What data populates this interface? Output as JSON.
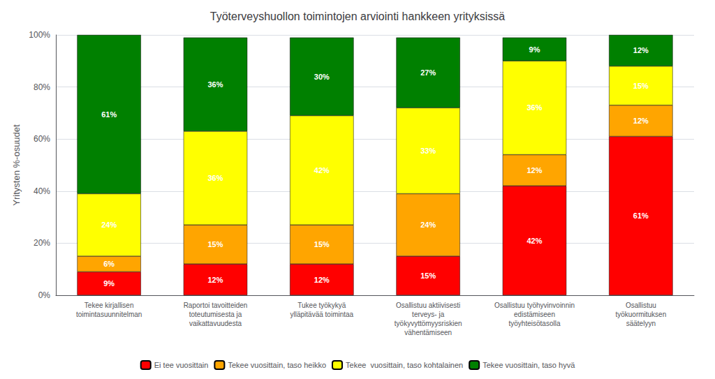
{
  "chart_data": {
    "type": "bar",
    "title": "Työterveyshuollon toimintojen arviointi hankkeen yrityksissä",
    "ylabel": "Yritysten %-osuudet",
    "categories": [
      "Tekee kirjallisen\ntoimintasuunnitelman",
      "Raportoi tavoitteiden\ntoteutumisesta ja\nvaikattavuudesta",
      "Tukee työkykyä\nylläpitävää toimintaa",
      "Osallistuu aktiivisesti\nterveys- ja\ntyökyvyttömyysriskien\nvähentämiseen",
      "Osallistuu työhyvinvoinnin\nedistämiseen\ntyöyhteisötasolla",
      "Osallistuu\ntyökuormituksen\nsäätelyyn"
    ],
    "series": [
      {
        "name": "Ei tee vuosittain",
        "color": "#FF0000",
        "values": [
          9,
          12,
          12,
          15,
          42,
          61
        ],
        "value_labels": [
          "9%",
          "12%",
          "12%",
          "15%",
          "42%",
          "61%"
        ]
      },
      {
        "name": "Tekee vuosittain, taso heikko",
        "color": "#FFA500",
        "values": [
          6,
          15,
          15,
          24,
          12,
          12
        ],
        "value_labels": [
          "6%",
          "15%",
          "15%",
          "24%",
          "12%",
          "12%"
        ]
      },
      {
        "name": "Tekee  vuosittain, taso kohtalainen",
        "color": "#FFFF00",
        "values": [
          24,
          36,
          42,
          33,
          36,
          15
        ],
        "value_labels": [
          "24%",
          "36%",
          "42%",
          "33%",
          "36%",
          "15%"
        ]
      },
      {
        "name": "Tekee vuosittain, taso hyvä",
        "color": "#008000",
        "values": [
          61,
          36,
          30,
          27,
          9,
          12
        ],
        "value_labels": [
          "61%",
          "36%",
          "30%",
          "27%",
          "9%",
          "12%"
        ]
      }
    ],
    "ylim": [
      0,
      100
    ],
    "yticks": [
      {
        "value": 0,
        "label": "0%"
      },
      {
        "value": 20,
        "label": "20%"
      },
      {
        "value": 40,
        "label": "40%"
      },
      {
        "value": 60,
        "label": "60%"
      },
      {
        "value": 80,
        "label": "80%"
      },
      {
        "value": 100,
        "label": "100%"
      }
    ],
    "stacked": true,
    "data_labels": true,
    "grid": true,
    "legend": "bottom"
  }
}
